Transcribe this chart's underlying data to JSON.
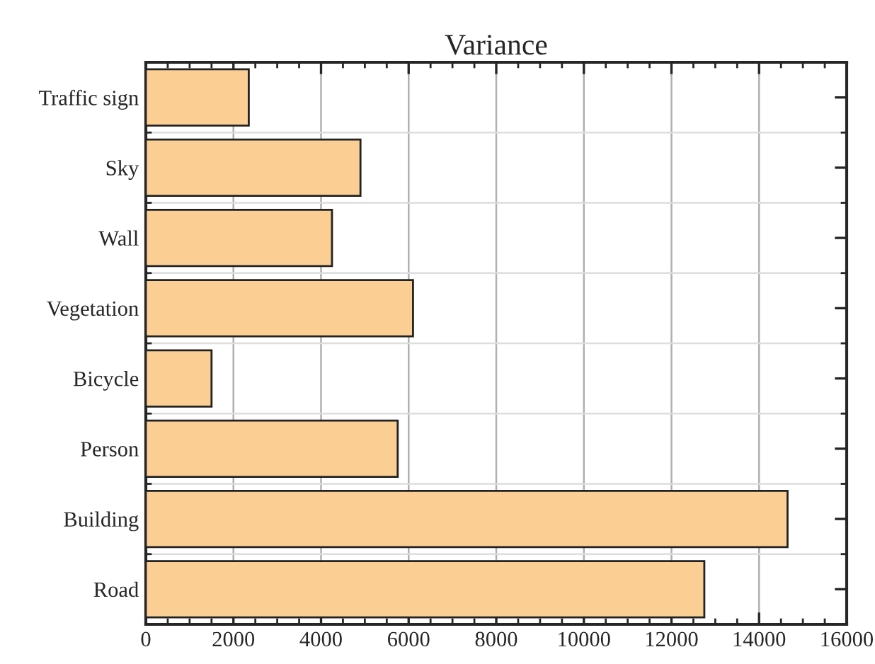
{
  "chart_data": {
    "type": "bar",
    "orientation": "horizontal",
    "title": "Variance",
    "categories": [
      "Traffic sign",
      "Sky",
      "Wall",
      "Vegetation",
      "Bicycle",
      "Person",
      "Building",
      "Road"
    ],
    "values": [
      2350,
      4900,
      4250,
      6100,
      1500,
      5750,
      14650,
      12750
    ],
    "color": "#fbcf93",
    "xlim": [
      0,
      16000
    ],
    "xticks": [
      0,
      2000,
      4000,
      6000,
      8000,
      10000,
      12000,
      14000,
      16000
    ],
    "grid": true
  }
}
